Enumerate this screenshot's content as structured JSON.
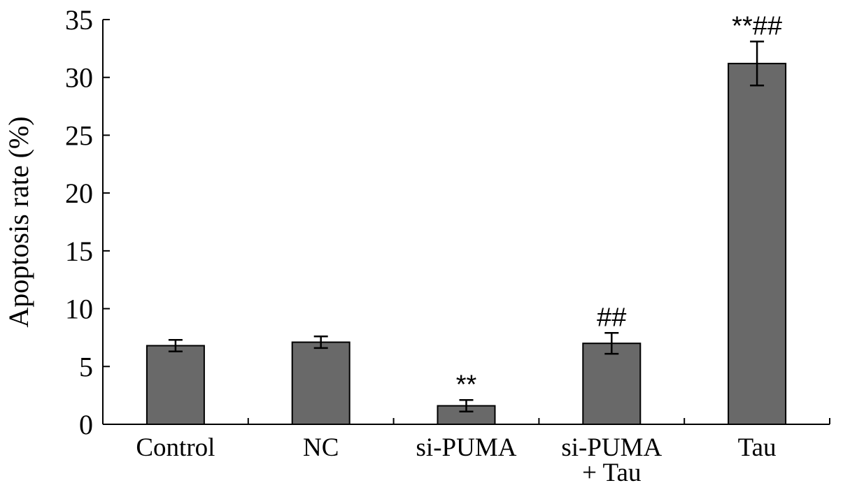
{
  "chart_data": {
    "type": "bar",
    "title": "",
    "xlabel": "",
    "ylabel": "Apoptosis rate (%)",
    "ylim": [
      0,
      35
    ],
    "yticks": [
      0,
      5,
      10,
      15,
      20,
      25,
      30,
      35
    ],
    "categories": [
      [
        "Control"
      ],
      [
        "NC"
      ],
      [
        "si-PUMA"
      ],
      [
        "si-PUMA",
        "+ Tau"
      ],
      [
        "Tau"
      ]
    ],
    "values": [
      6.8,
      7.1,
      1.6,
      7.0,
      31.2
    ],
    "errors": [
      0.5,
      0.5,
      0.5,
      0.9,
      1.9
    ],
    "annotations": [
      "",
      "",
      "**",
      "##",
      "**##"
    ],
    "bar_color": "#696969",
    "grid": false,
    "legend": "none"
  }
}
